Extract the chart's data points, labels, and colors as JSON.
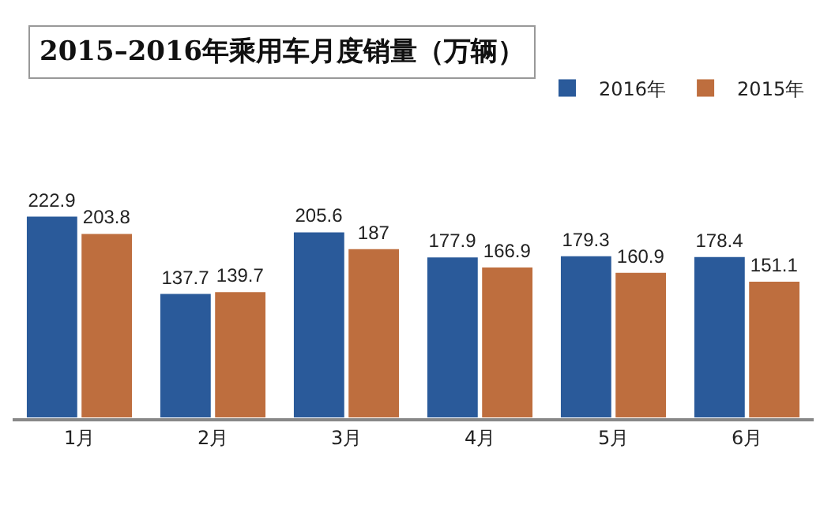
{
  "chart_data": {
    "type": "bar",
    "title": "2015–2016年乘用车月度销量（万辆）",
    "categories": [
      "1月",
      "2月",
      "3月",
      "4月",
      "5月",
      "6月"
    ],
    "series": [
      {
        "name": "2016年",
        "color": "#2a5a9a",
        "values": [
          222.9,
          137.7,
          205.6,
          177.9,
          179.3,
          178.4
        ]
      },
      {
        "name": "2015年",
        "color": "#be6e3e",
        "values": [
          203.8,
          139.7,
          187,
          166.9,
          160.9,
          151.1
        ]
      }
    ],
    "data_labels": true,
    "legend": "top right",
    "grid": false
  }
}
